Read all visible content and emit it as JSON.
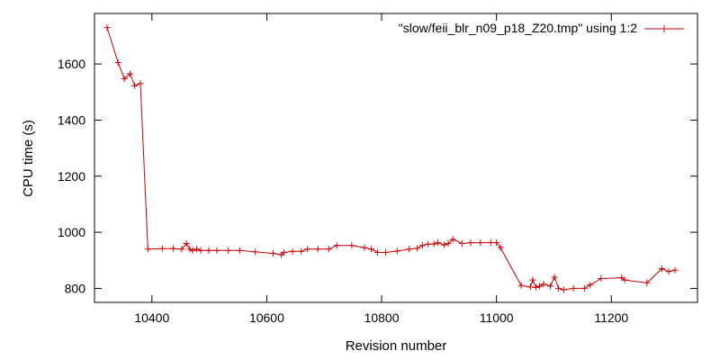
{
  "chart_data": {
    "type": "line",
    "title": "",
    "xlabel": "Revision number",
    "ylabel": "CPU time (s)",
    "xlim": [
      10300,
      11350
    ],
    "ylim": [
      750,
      1780
    ],
    "xticks": [
      10400,
      10600,
      10800,
      11000,
      11200
    ],
    "yticks": [
      800,
      1000,
      1200,
      1400,
      1600
    ],
    "xtick_labels": [
      "10400",
      "10600",
      "10800",
      "11000",
      "11200"
    ],
    "ytick_labels": [
      "800",
      "1000",
      "1200",
      "1400",
      "1600"
    ],
    "grid": false,
    "legend_position": "top-right",
    "color": "#cc0000",
    "series": [
      {
        "name": "\"slow/feii_blr_n09_p18_Z20.tmp\" using 1:2",
        "x": [
          10322,
          10341,
          10352,
          10362,
          10370,
          10380,
          10393,
          10418,
          10437,
          10452,
          10460,
          10466,
          10471,
          10478,
          10485,
          10499,
          10513,
          10533,
          10553,
          10580,
          10611,
          10625,
          10630,
          10645,
          10660,
          10671,
          10689,
          10708,
          10722,
          10748,
          10770,
          10782,
          10793,
          10807,
          10827,
          10848,
          10862,
          10871,
          10881,
          10891,
          10898,
          10909,
          10916,
          10924,
          10940,
          10955,
          10972,
          10990,
          11000,
          11007,
          11043,
          11059,
          11063,
          11069,
          11075,
          11082,
          11094,
          11101,
          11108,
          11117,
          11134,
          11153,
          11163,
          11182,
          11218,
          11223,
          11262,
          11288,
          11300,
          11311
        ],
        "y": [
          1730,
          1605,
          1547,
          1565,
          1522,
          1530,
          940,
          942,
          942,
          940,
          960,
          940,
          935,
          940,
          935,
          935,
          935,
          935,
          935,
          930,
          925,
          920,
          928,
          932,
          932,
          940,
          940,
          940,
          953,
          953,
          945,
          940,
          928,
          928,
          933,
          940,
          943,
          953,
          958,
          958,
          963,
          955,
          960,
          975,
          960,
          963,
          963,
          963,
          963,
          945,
          810,
          805,
          830,
          803,
          808,
          815,
          808,
          840,
          800,
          795,
          800,
          800,
          812,
          835,
          838,
          830,
          820,
          870,
          860,
          865
        ]
      }
    ]
  }
}
